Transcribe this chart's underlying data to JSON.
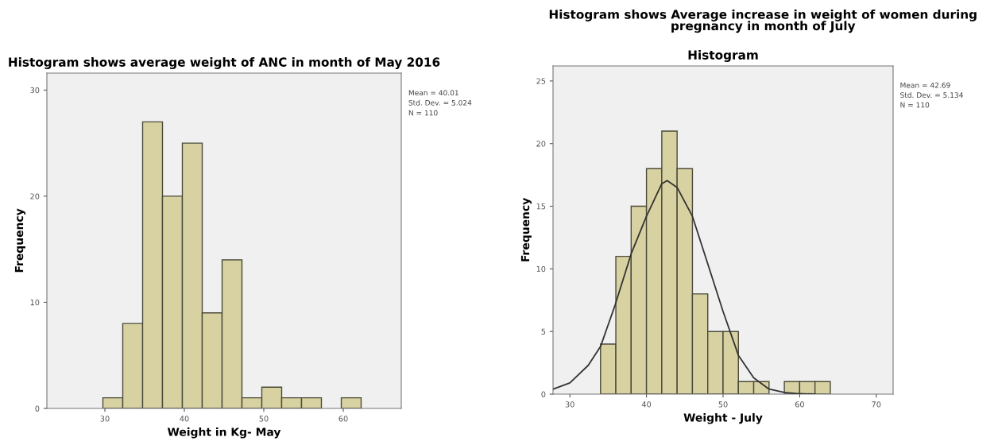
{
  "chart_data": [
    {
      "type": "histogram",
      "title": "Histogram shows average weight of ANC in month of May 2016",
      "xlabel": "Weight in Kg- May",
      "ylabel": "Frequency",
      "bins": [
        29.75,
        32.25,
        34.75,
        37.25,
        39.75,
        42.25,
        44.75,
        47.25,
        49.75,
        52.25,
        54.75,
        57.25,
        59.75,
        62.25
      ],
      "values": [
        1,
        8,
        27,
        20,
        25,
        9,
        14,
        1,
        2,
        1,
        1,
        0,
        1
      ],
      "color": "#d8d2a2",
      "xlim": [
        22.7,
        67.3
      ],
      "ylim": [
        0,
        31.6
      ],
      "xticks": [
        30,
        40,
        50,
        60
      ],
      "yticks": [
        0,
        10,
        20,
        30
      ],
      "grid": false,
      "annotations": [
        "Mean = 40.01",
        "Std. Dev. = 5.024",
        "N = 110"
      ]
    },
    {
      "type": "histogram",
      "title": "Histogram shows Average increase in weight of women during\npregnancy in month of July",
      "subtitle": "Histogram",
      "xlabel": "Weight - July",
      "ylabel": "Frequency",
      "bins": [
        34,
        36,
        38,
        40,
        42,
        44,
        46,
        48,
        50,
        52,
        54,
        56,
        58,
        60,
        62,
        64
      ],
      "values": [
        4,
        11,
        15,
        18,
        21,
        18,
        8,
        5,
        5,
        1,
        1,
        0,
        1,
        1,
        1
      ],
      "color": "#d8d2a2",
      "xlim": [
        27.8,
        72.2
      ],
      "ylim": [
        0,
        26.2
      ],
      "xticks": [
        30,
        40,
        50,
        60,
        70
      ],
      "yticks": [
        0,
        5,
        10,
        15,
        20,
        25
      ],
      "grid": false,
      "series": [
        {
          "type": "line",
          "color": "#333333",
          "x": [
            27.8,
            30,
            32.4,
            34,
            35.9,
            38,
            40,
            42,
            42.7,
            44,
            46,
            48,
            50,
            52,
            54,
            56,
            58,
            60,
            62
          ],
          "values": [
            0.4,
            0.9,
            2.3,
            3.8,
            7.1,
            11.2,
            14.2,
            16.8,
            17.05,
            16.5,
            14.2,
            10.4,
            6.6,
            3.1,
            1.3,
            0.4,
            0.13,
            0.03,
            0.0
          ]
        }
      ],
      "annotations": [
        "Mean = 42.69",
        "Std. Dev. = 5.134",
        "N = 110"
      ]
    }
  ]
}
